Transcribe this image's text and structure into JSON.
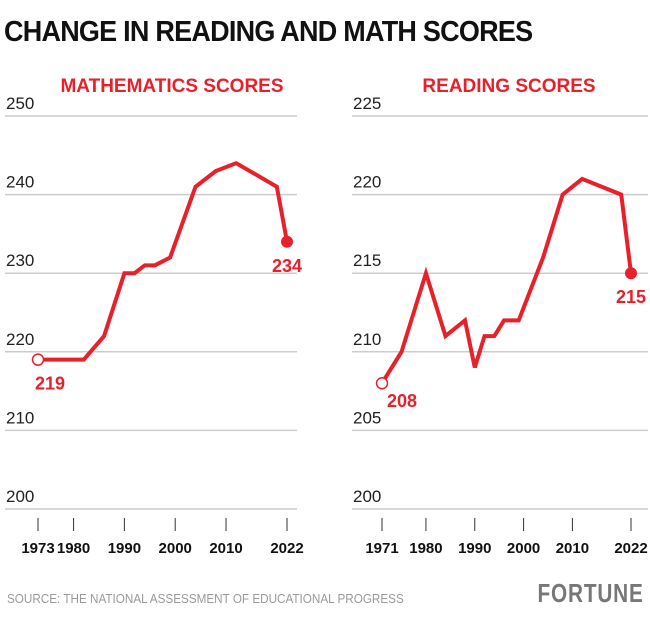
{
  "title": "CHANGE IN READING AND MATH SCORES",
  "source": "SOURCE: THE NATIONAL ASSESSMENT OF EDUCATIONAL PROGRESS",
  "logo": "FORTUNE",
  "colors": {
    "line": "#e8202a",
    "grid": "#cccccc"
  },
  "chart_data": [
    {
      "type": "line",
      "title": "MATHEMATICS SCORES",
      "x": [
        1973,
        1978,
        1982,
        1986,
        1990,
        1992,
        1994,
        1996,
        1999,
        2004,
        2008,
        2012,
        2020,
        2022
      ],
      "values": [
        219,
        219,
        219,
        222,
        230,
        230,
        231,
        231,
        232,
        241,
        243,
        244,
        241,
        234
      ],
      "xticks": [
        1973,
        1980,
        1990,
        2000,
        2010,
        2022
      ],
      "yticks": [
        200,
        210,
        220,
        230,
        240,
        250
      ],
      "ylim": [
        200,
        250
      ],
      "annotations": [
        {
          "x": 1973,
          "y": 219,
          "label": "219"
        },
        {
          "x": 2022,
          "y": 234,
          "label": "234"
        }
      ],
      "grid": true
    },
    {
      "type": "line",
      "title": "READING SCORES",
      "x": [
        1971,
        1975,
        1980,
        1984,
        1988,
        1990,
        1992,
        1994,
        1996,
        1999,
        2004,
        2008,
        2012,
        2020,
        2022
      ],
      "values": [
        208,
        210,
        215,
        211,
        212,
        209,
        211,
        211,
        212,
        212,
        216,
        220,
        221,
        220,
        215
      ],
      "xticks": [
        1971,
        1980,
        1990,
        2000,
        2010,
        2022
      ],
      "yticks": [
        200,
        205,
        210,
        215,
        220,
        225
      ],
      "ylim": [
        200,
        225
      ],
      "annotations": [
        {
          "x": 1971,
          "y": 208,
          "label": "208"
        },
        {
          "x": 2022,
          "y": 215,
          "label": "215"
        }
      ],
      "grid": true
    }
  ]
}
